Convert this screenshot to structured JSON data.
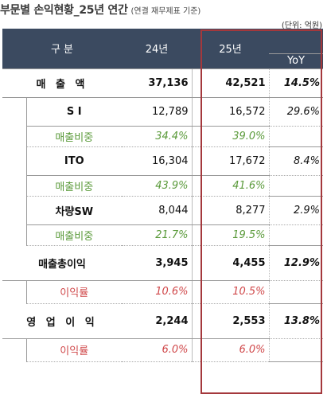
{
  "title": "부문별 손익현황_25년 연간",
  "subtitle": "(연결 재무제표 기준)",
  "unit": "(단위: 억원)",
  "header": {
    "category": "구      분",
    "y24": "24년",
    "y25": "25년",
    "yoy": "YoY"
  },
  "rows": {
    "revenue": {
      "label": "매 출 액",
      "y24": "37,136",
      "y25": "42,521",
      "yoy": "14.5%"
    },
    "si": {
      "label": "S I",
      "y24": "12,789",
      "y25": "16,572",
      "yoy": "29.6%"
    },
    "si_share": {
      "label": "매출비중",
      "y24": "34.4%",
      "y25": "39.0%"
    },
    "ito": {
      "label": "ITO",
      "y24": "16,304",
      "y25": "17,672",
      "yoy": "8.4%"
    },
    "ito_share": {
      "label": "매출비중",
      "y24": "43.9%",
      "y25": "41.6%"
    },
    "vsw": {
      "label": "차량SW",
      "y24": "8,044",
      "y25": "8,277",
      "yoy": "2.9%"
    },
    "vsw_share": {
      "label": "매출비중",
      "y24": "21.7%",
      "y25": "19.5%"
    },
    "gross": {
      "label": "매출총이익",
      "y24": "3,945",
      "y25": "4,455",
      "yoy": "12.9%"
    },
    "gross_margin": {
      "label": "이익률",
      "y24": "10.6%",
      "y25": "10.5%"
    },
    "op": {
      "label": "영 업 이 익",
      "y24": "2,244",
      "y25": "2,553",
      "yoy": "13.8%"
    },
    "op_margin": {
      "label": "이익률",
      "y24": "6.0%",
      "y25": "6.0%"
    }
  },
  "colors": {
    "header_bg": "#3b4a60",
    "highlight": "#a4383c",
    "share_text": "#5a9a3a",
    "margin_text": "#d0484a"
  }
}
